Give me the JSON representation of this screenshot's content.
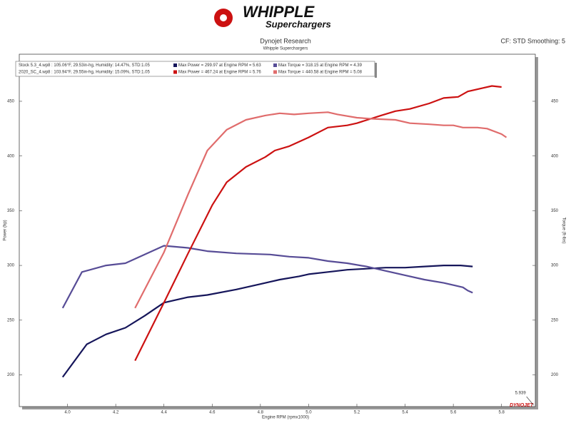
{
  "brand": {
    "name": "WHIPPLE",
    "tagline": "Superchargers",
    "footer_logo": "DYNOJET"
  },
  "chart_data": {
    "type": "line",
    "title": "Dynojet Research",
    "subtitle": "Whipple Superchargers",
    "settings_label": "CF: STD Smoothing: 5",
    "x_label": "Engine RPM (rpmx1000)",
    "y_label": "Power (hp)",
    "y2_label": "Torque (ft-lbs)",
    "runs": [
      "Stock 5.3_4.wp8  : 105.06°F, 29.53in-hg, Humidity: 14.47%, STD:1.05",
      "2020_SC_4.wp8 : 103.94°F, 29.55in-hg, Humidity: 15.09%, STD:1.05"
    ],
    "cursor_x": 5.939,
    "xlim": [
      3.8,
      5.94
    ],
    "xticks": [
      {
        "value": 4,
        "label": "4.0"
      },
      4.2,
      4.4,
      4.6,
      4.8,
      {
        "value": 5,
        "label": "5.0"
      },
      5.2,
      5.4,
      5.6,
      5.8
    ],
    "ylim": [
      171,
      493
    ],
    "yticks": [
      200,
      250,
      300,
      350,
      400,
      450
    ],
    "y2lim": [
      171,
      493
    ],
    "y2ticks": [
      200,
      250,
      300,
      350,
      400,
      450
    ],
    "series": [
      {
        "name": "Max Power = 299.97 at Engine RPM = 5.63",
        "color": "#15155a",
        "x": [
          3.98,
          4.08,
          4.16,
          4.24,
          4.32,
          4.4,
          4.5,
          4.58,
          4.7,
          4.8,
          4.88,
          4.96,
          5.0,
          5.08,
          5.16,
          5.24,
          5.32,
          5.4,
          5.48,
          5.56,
          5.63,
          5.68
        ],
        "values": [
          198,
          228,
          237,
          243,
          254,
          266,
          271,
          273,
          278,
          283,
          287,
          290,
          292,
          294,
          296,
          297,
          298,
          298,
          299,
          300,
          300,
          299
        ]
      },
      {
        "name": "Max Torque = 318.15 at Engine RPM = 4.39",
        "color": "#574c96",
        "axis": "y2",
        "x": [
          3.98,
          4.06,
          4.16,
          4.24,
          4.32,
          4.4,
          4.5,
          4.58,
          4.7,
          4.84,
          4.92,
          5.0,
          5.08,
          5.16,
          5.24,
          5.32,
          5.4,
          5.48,
          5.56,
          5.64,
          5.66,
          5.68
        ],
        "values": [
          261,
          294,
          300,
          302,
          310,
          318,
          316,
          313,
          311,
          310,
          308,
          307,
          304,
          302,
          299,
          295,
          291,
          287,
          284,
          280,
          277,
          275
        ]
      },
      {
        "name": "Max Power = 467.24 at Engine RPM = 5.76",
        "color": "#cc1111",
        "x": [
          4.28,
          4.4,
          4.5,
          4.6,
          4.66,
          4.74,
          4.82,
          4.86,
          4.92,
          5.0,
          5.08,
          5.16,
          5.2,
          5.3,
          5.36,
          5.42,
          5.5,
          5.56,
          5.62,
          5.66,
          5.72,
          5.76,
          5.8
        ],
        "values": [
          213,
          266,
          311,
          355,
          376,
          390,
          399,
          405,
          409,
          417,
          426,
          428,
          430,
          437,
          441,
          443,
          448,
          453,
          454,
          459,
          462,
          464,
          463
        ]
      },
      {
        "name": "Max Torque = 440.58 at Engine RPM = 5.08",
        "color": "#e06c6c",
        "axis": "y2",
        "x": [
          4.28,
          4.4,
          4.5,
          4.58,
          4.66,
          4.74,
          4.82,
          4.88,
          4.94,
          5.0,
          5.08,
          5.12,
          5.2,
          5.26,
          5.36,
          5.42,
          5.5,
          5.56,
          5.6,
          5.64,
          5.7,
          5.74,
          5.8,
          5.82
        ],
        "values": [
          261,
          312,
          365,
          405,
          424,
          433,
          437,
          439,
          438,
          439,
          440,
          438,
          435,
          434,
          433,
          430,
          429,
          428,
          428,
          426,
          426,
          425,
          420,
          417
        ]
      }
    ]
  }
}
